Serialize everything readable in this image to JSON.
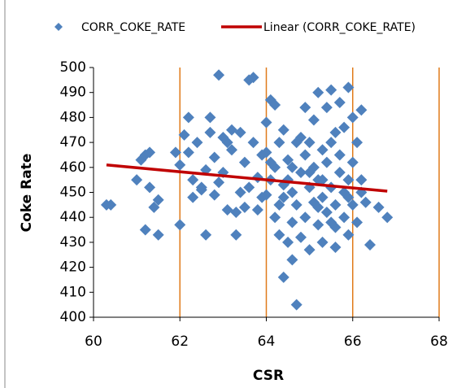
{
  "chart_data": {
    "type": "scatter",
    "xlabel": "CSR",
    "ylabel": "Coke Rate",
    "xlim": [
      60,
      68
    ],
    "xticks": [
      60,
      62,
      64,
      66,
      68
    ],
    "ylim": [
      400,
      500
    ],
    "yticks": [
      400,
      410,
      420,
      430,
      440,
      450,
      460,
      470,
      480,
      490,
      500
    ],
    "grid": "x",
    "grid_color": "#e07b1a",
    "series": [
      {
        "name": "CORR_COKE_RATE",
        "color": "#4f81bd",
        "marker": "diamond",
        "x": [
          60.3,
          60.4,
          61.0,
          61.1,
          61.2,
          61.3,
          61.2,
          61.3,
          61.4,
          61.5,
          61.5,
          61.9,
          62.0,
          62.0,
          62.1,
          62.2,
          62.2,
          62.3,
          62.3,
          62.4,
          62.5,
          62.6,
          62.6,
          62.7,
          62.7,
          62.8,
          62.8,
          62.9,
          62.9,
          63.0,
          63.1,
          63.1,
          63.2,
          63.2,
          63.3,
          63.3,
          63.4,
          63.4,
          63.5,
          63.5,
          63.6,
          63.7,
          63.7,
          63.8,
          63.8,
          63.9,
          64.0,
          64.0,
          64.1,
          64.1,
          64.2,
          64.2,
          64.2,
          64.3,
          64.3,
          64.4,
          64.4,
          64.4,
          64.5,
          64.5,
          64.5,
          64.6,
          64.6,
          64.6,
          64.7,
          64.7,
          64.7,
          64.8,
          64.8,
          64.9,
          64.9,
          64.9,
          65.0,
          65.0,
          65.0,
          65.1,
          65.1,
          65.1,
          65.2,
          65.2,
          65.2,
          65.3,
          65.3,
          65.3,
          65.4,
          65.4,
          65.4,
          65.5,
          65.5,
          65.5,
          65.6,
          65.6,
          65.6,
          65.7,
          65.7,
          65.7,
          65.8,
          65.8,
          65.8,
          65.9,
          65.9,
          65.9,
          66.0,
          66.0,
          66.0,
          66.1,
          66.1,
          66.2,
          66.2,
          66.2,
          66.3,
          66.4,
          66.6,
          66.8,
          63.6,
          64.1,
          63.0,
          62.5,
          64.8,
          65.2,
          65.5,
          64.4,
          64.0,
          65.6,
          65.0,
          64.6,
          65.9,
          64.3,
          63.9,
          65.3
        ],
        "values": [
          445,
          445,
          455,
          463,
          465,
          466,
          435,
          452,
          444,
          447,
          433,
          466,
          461,
          437,
          473,
          480,
          466,
          448,
          455,
          470,
          451,
          459,
          433,
          480,
          474,
          464,
          449,
          497,
          454,
          458,
          443,
          470,
          467,
          475,
          433,
          442,
          450,
          474,
          444,
          462,
          495,
          496,
          470,
          443,
          456,
          448,
          466,
          478,
          487,
          455,
          485,
          440,
          460,
          470,
          433,
          448,
          475,
          416,
          430,
          455,
          463,
          423,
          438,
          450,
          470,
          445,
          405,
          458,
          432,
          484,
          440,
          465,
          452,
          427,
          470,
          479,
          446,
          460,
          490,
          437,
          455,
          467,
          430,
          448,
          484,
          442,
          462,
          491,
          452,
          470,
          436,
          445,
          428,
          458,
          465,
          486,
          440,
          450,
          476,
          492,
          433,
          455,
          480,
          445,
          462,
          470,
          438,
          483,
          450,
          455,
          446,
          429,
          444,
          440,
          452,
          462,
          472,
          452,
          472,
          444,
          438,
          453,
          449,
          474,
          458,
          460,
          448,
          445,
          465,
          455
        ]
      },
      {
        "name": "Linear (CORR_COKE_RATE)",
        "color": "#c00000",
        "marker": "line",
        "x": [
          60.3,
          66.8
        ],
        "values": [
          461,
          450.5
        ]
      }
    ]
  }
}
